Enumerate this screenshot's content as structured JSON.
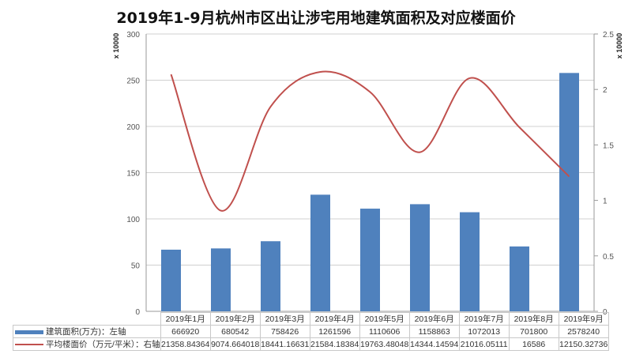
{
  "chart_data": {
    "type": "bar+line",
    "title": "2019年1-9月杭州市区出让涉宅用地建筑面积及对应楼面价",
    "categories": [
      "2019年1月",
      "2019年2月",
      "2019年3月",
      "2019年4月",
      "2019年5月",
      "2019年6月",
      "2019年7月",
      "2019年8月",
      "2019年9月"
    ],
    "series": [
      {
        "name": "建筑面积(万方)：左轴",
        "type": "bar",
        "axis": "left",
        "color": "#4F81BD",
        "values": [
          666920,
          680542,
          758426,
          1261596,
          1110606,
          1158863,
          1072013,
          701800,
          2578240
        ],
        "display": [
          "666920",
          "680542",
          "758426",
          "1261596",
          "1110606",
          "1158863",
          "1072013",
          "701800",
          "2578240"
        ]
      },
      {
        "name": "平均楼面价（万元/平米）：右轴",
        "type": "line",
        "axis": "right",
        "color": "#C0504D",
        "values": [
          21358.84364,
          9074.664018,
          18441.16631,
          21584.18384,
          19763.48048,
          14344.14594,
          21016.05111,
          16586,
          12150.32736
        ],
        "display": [
          "21358.84364",
          "9074.664018",
          "18441.16631",
          "21584.18384",
          "19763.48048",
          "14344.14594",
          "21016.05111",
          "16586",
          "12150.32736"
        ]
      }
    ],
    "left_axis": {
      "ylim": [
        0,
        300
      ],
      "ticks": [
        "0",
        "50",
        "100",
        "150",
        "200",
        "250",
        "300"
      ],
      "unit": "x 10000"
    },
    "right_axis": {
      "ylim": [
        0,
        2.5
      ],
      "ticks": [
        "0",
        "0.5",
        "1",
        "1.5",
        "2",
        "2.5"
      ],
      "unit": "x 10000"
    },
    "grid": true,
    "legend_position": "data-table"
  },
  "table": {
    "row_labels": [
      "建筑面积(万方)：左轴",
      "平均楼面价（万元/平米）：右轴"
    ]
  }
}
